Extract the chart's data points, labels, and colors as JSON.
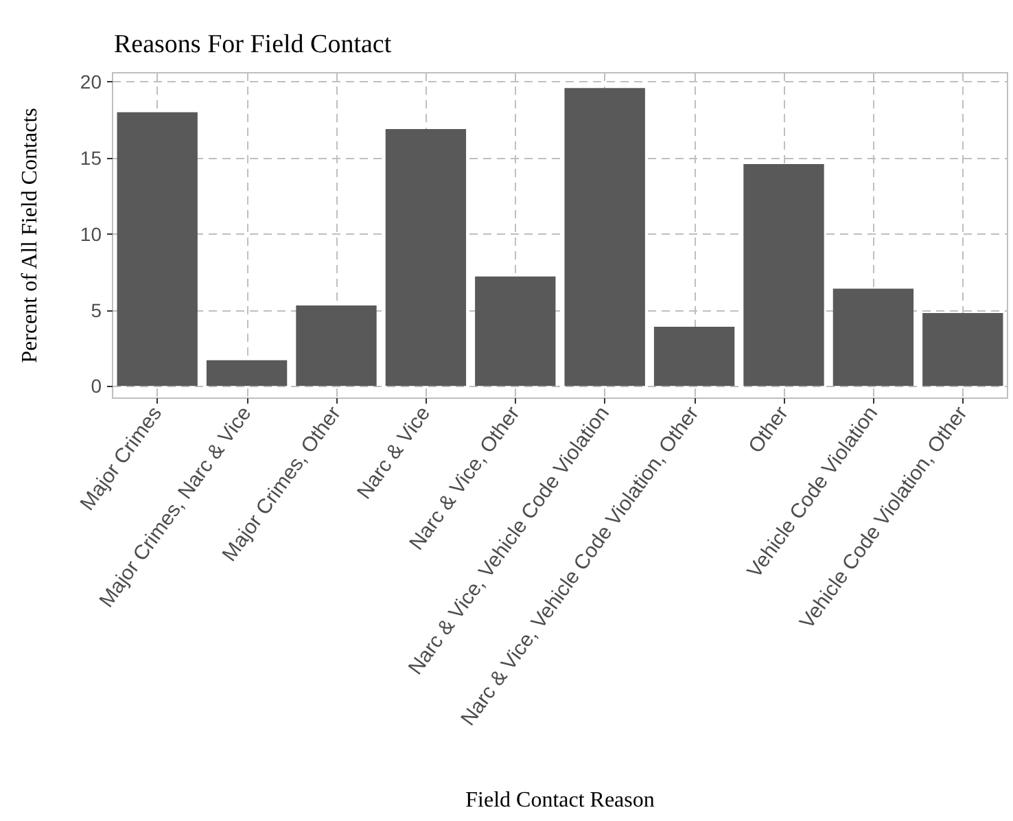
{
  "chart_data": {
    "type": "bar",
    "title": "Reasons For Field Contact",
    "xlabel": "Field Contact Reason",
    "ylabel": "Percent of All Field Contacts",
    "categories": [
      "Major Crimes",
      "Major Crimes, Narc & Vice",
      "Major Crimes, Other",
      "Narc & Vice",
      "Narc & Vice, Other",
      "Narc & Vice, Vehicle Code Violation",
      "Narc & Vice, Vehicle Code Violation, Other",
      "Other",
      "Vehicle Code Violation",
      "Vehicle Code Violation, Other"
    ],
    "values": [
      18.0,
      1.7,
      5.3,
      16.9,
      7.2,
      19.6,
      3.9,
      14.6,
      6.4,
      4.8
    ],
    "color": "#595959",
    "ylim": [
      -0.8,
      20.6
    ],
    "yticks": [
      0,
      5,
      10,
      15,
      20
    ],
    "grid": true
  }
}
